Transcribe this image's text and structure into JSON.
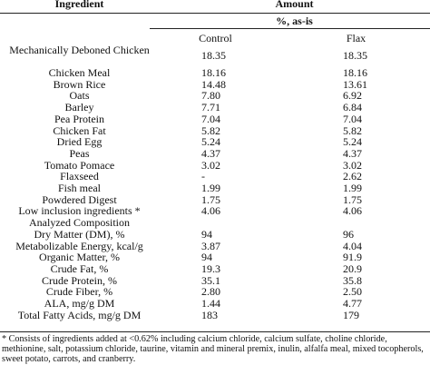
{
  "header": {
    "ingredient": "Ingredient",
    "amount": "Amount",
    "unit": "%, as-is",
    "control": "Control",
    "flax": "Flax"
  },
  "rows": [
    {
      "label": "Mechanically Deboned Chicken",
      "control": "18.35",
      "flax": "18.35"
    },
    {
      "label": "Chicken Meal",
      "control": "18.16",
      "flax": "18.16"
    },
    {
      "label": "Brown Rice",
      "control": "14.48",
      "flax": "13.61"
    },
    {
      "label": "Oats",
      "control": "7.80",
      "flax": "6.92"
    },
    {
      "label": "Barley",
      "control": "7.71",
      "flax": "6.84"
    },
    {
      "label": "Pea Protein",
      "control": "7.04",
      "flax": "7.04"
    },
    {
      "label": "Chicken Fat",
      "control": "5.82",
      "flax": "5.82"
    },
    {
      "label": "Dried Egg",
      "control": "5.24",
      "flax": "5.24"
    },
    {
      "label": "Peas",
      "control": "4.37",
      "flax": "4.37"
    },
    {
      "label": "Tomato Pomace",
      "control": "3.02",
      "flax": "3.02"
    },
    {
      "label": "Flaxseed",
      "control": "-",
      "flax": "2.62"
    },
    {
      "label": "Fish meal",
      "control": "1.99",
      "flax": "1.99"
    },
    {
      "label": "Powdered Digest",
      "control": "1.75",
      "flax": "1.75"
    },
    {
      "label": "Low inclusion ingredients *",
      "control": "4.06",
      "flax": "4.06"
    },
    {
      "label": "Analyzed Composition"
    },
    {
      "label": "Dry Matter (DM), %",
      "control": "94",
      "flax": "96"
    },
    {
      "label": "Metabolizable Energy, kcal/g",
      "control": "3.87",
      "flax": "4.04"
    },
    {
      "label": "Organic Matter, %",
      "control": "94",
      "flax": "91.9"
    },
    {
      "label": "Crude Fat, %",
      "control": "19.3",
      "flax": "20.9"
    },
    {
      "label": "Crude Protein, %",
      "control": "35.1",
      "flax": "35.8"
    },
    {
      "label": "Crude Fiber, %",
      "control": "2.80",
      "flax": "2.50"
    },
    {
      "label": "ALA, mg/g DM",
      "control": "1.44",
      "flax": "4.77"
    },
    {
      "label": "Total Fatty Acids, mg/g DM",
      "control": "183",
      "flax": "179"
    }
  ],
  "footnote": "* Consists of ingredients added at <0.62% including calcium chloride, calcium sulfate, choline chloride, methionine, salt, potassium chloride, taurine, vitamin and mineral premix, inulin, alfalfa meal, mixed tocopherols, sweet potato, carrots, and cranberry."
}
